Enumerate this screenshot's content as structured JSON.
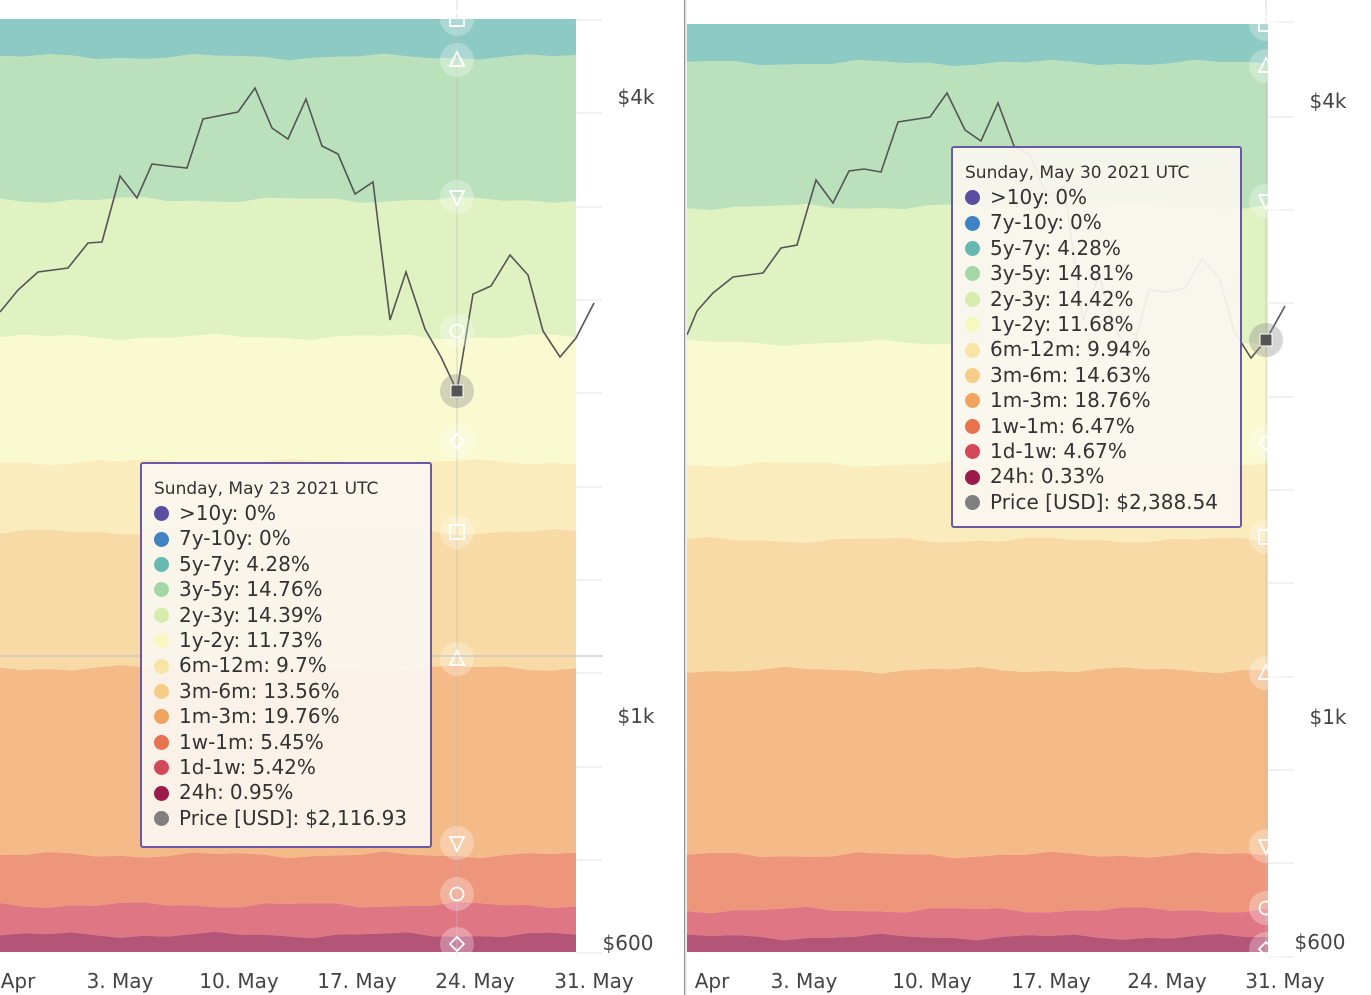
{
  "chart_data": [
    {
      "type": "area",
      "title": "",
      "x": [
        "Apr",
        "3. May",
        "10. May",
        "17. May",
        "24. May",
        "31. May"
      ],
      "y_ticks": [
        "$4k",
        "$1k",
        "$600"
      ],
      "bands": [
        {
          "name": ">10y",
          "color": "#5a4ea3"
        },
        {
          "name": "7y-10y",
          "color": "#3f83c2"
        },
        {
          "name": "5y-7y",
          "color": "#67b8b0"
        },
        {
          "name": "3y-5y",
          "color": "#a3d7a6"
        },
        {
          "name": "2y-3y",
          "color": "#d5ecad"
        },
        {
          "name": "1y-2y",
          "color": "#f7f8bf"
        },
        {
          "name": "6m-12m",
          "color": "#f8e5a6"
        },
        {
          "name": "3m-6m",
          "color": "#f6cd88"
        },
        {
          "name": "1m-3m",
          "color": "#f0a460"
        },
        {
          "name": "1w-1m",
          "color": "#e8734f"
        },
        {
          "name": "1d-1w",
          "color": "#d4485a"
        },
        {
          "name": "24h",
          "color": "#9b1b4a"
        }
      ],
      "price_series": {
        "name": "Price [USD]",
        "color": "#555555"
      },
      "panels": [
        {
          "tooltip": {
            "date": "Sunday, May 23 2021 UTC",
            "values": [
              "0%",
              "0%",
              "4.28%",
              "14.76%",
              "14.39%",
              "11.73%",
              "9.7%",
              "13.56%",
              "19.76%",
              "5.45%",
              "5.42%",
              "0.95%"
            ],
            "price": "$2,116.93"
          }
        },
        {
          "tooltip": {
            "date": "Sunday, May 30 2021 UTC",
            "values": [
              "0%",
              "0%",
              "4.28%",
              "14.81%",
              "14.42%",
              "11.68%",
              "9.94%",
              "14.63%",
              "18.76%",
              "6.47%",
              "4.67%",
              "0.33%"
            ],
            "price": "$2,388.54"
          }
        }
      ]
    }
  ]
}
